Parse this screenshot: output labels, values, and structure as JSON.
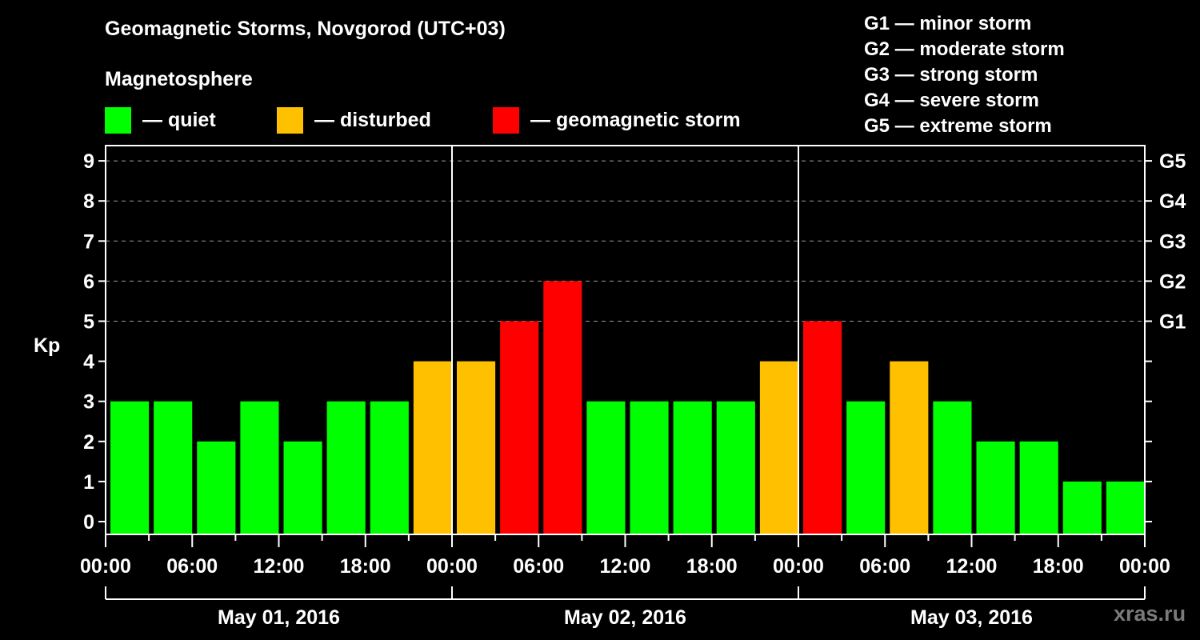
{
  "header": {
    "title": "Geomagnetic Storms, Novgorod (UTC+03)",
    "subtitle": "Magnetosphere"
  },
  "legend": [
    {
      "label": "— quiet",
      "color": "#00ff00"
    },
    {
      "label": "— disturbed",
      "color": "#ffc000"
    },
    {
      "label": "— geomagnetic storm",
      "color": "#ff0000"
    }
  ],
  "storm_scale": [
    "G1 — minor storm",
    "G2 — moderate storm",
    "G3 — strong storm",
    "G4 — severe storm",
    "G5 — extreme storm"
  ],
  "watermark": "xras.ru",
  "chart_data": {
    "type": "bar",
    "title": "Geomagnetic Storms, Novgorod (UTC+03)",
    "subtitle": "Magnetosphere",
    "ylabel": "Kp",
    "xlabel": "",
    "ylim": [
      0,
      9
    ],
    "yticks": [
      0,
      1,
      2,
      3,
      4,
      5,
      6,
      7,
      8,
      9
    ],
    "y2_ticks": [
      {
        "value": 5,
        "label": "G1"
      },
      {
        "value": 6,
        "label": "G2"
      },
      {
        "value": 7,
        "label": "G3"
      },
      {
        "value": 8,
        "label": "G4"
      },
      {
        "value": 9,
        "label": "G5"
      }
    ],
    "grid": {
      "y_dashed_at": [
        5,
        6,
        7,
        8,
        9
      ]
    },
    "x_tick_labels": [
      "00:00",
      "06:00",
      "12:00",
      "18:00",
      "00:00",
      "06:00",
      "12:00",
      "18:00",
      "00:00",
      "06:00",
      "12:00",
      "18:00",
      "00:00"
    ],
    "days": [
      "May 01, 2016",
      "May 02, 2016",
      "May 03, 2016"
    ],
    "interval_hours": 3,
    "categories": [
      "May 01 00:00",
      "May 01 03:00",
      "May 01 06:00",
      "May 01 09:00",
      "May 01 12:00",
      "May 01 15:00",
      "May 01 18:00",
      "May 01 21:00",
      "May 02 00:00",
      "May 02 03:00",
      "May 02 06:00",
      "May 02 09:00",
      "May 02 12:00",
      "May 02 15:00",
      "May 02 18:00",
      "May 02 21:00",
      "May 03 00:00",
      "May 03 03:00",
      "May 03 06:00",
      "May 03 09:00",
      "May 03 12:00",
      "May 03 15:00",
      "May 03 18:00",
      "May 03 21:00"
    ],
    "values": [
      3,
      3,
      2,
      3,
      2,
      3,
      3,
      4,
      4,
      5,
      6,
      3,
      3,
      3,
      3,
      4,
      5,
      3,
      4,
      3,
      2,
      2,
      1,
      1
    ],
    "color_rule": {
      "quiet": "Kp<4 → #00ff00",
      "disturbed": "Kp=4 → #ffc000",
      "storm": "Kp>=5 → #ff0000"
    },
    "legend": [
      "quiet",
      "disturbed",
      "geomagnetic storm"
    ]
  }
}
